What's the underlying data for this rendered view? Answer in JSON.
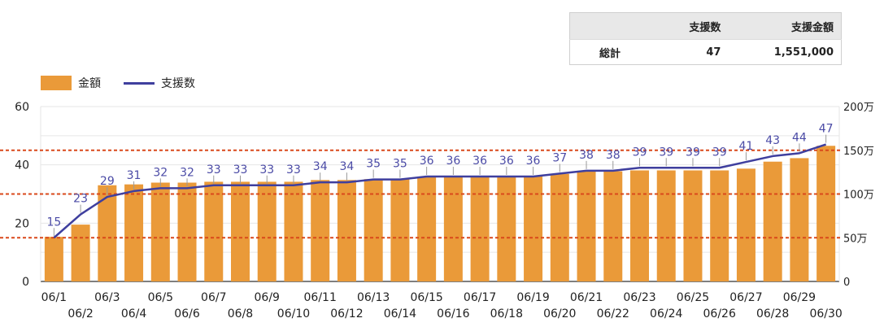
{
  "summary": {
    "headers": [
      "",
      "支援数",
      "支援金額"
    ],
    "row_label": "総計",
    "count": "47",
    "amount": "1,551,000"
  },
  "legend": {
    "amount_label": "金額",
    "count_label": "支援数"
  },
  "colors": {
    "bar": "#ea9a39",
    "line": "#3f3f9e",
    "label": "#4b4ba6",
    "reference_line": "#d9481b"
  },
  "chart_data": {
    "type": "bar",
    "categories": [
      "06/1",
      "06/2",
      "06/3",
      "06/4",
      "06/5",
      "06/6",
      "06/7",
      "06/8",
      "06/9",
      "06/10",
      "06/11",
      "06/12",
      "06/13",
      "06/14",
      "06/15",
      "06/16",
      "06/17",
      "06/18",
      "06/19",
      "06/20",
      "06/21",
      "06/22",
      "06/23",
      "06/24",
      "06/25",
      "06/26",
      "06/27",
      "06/28",
      "06/29",
      "06/30"
    ],
    "series": [
      {
        "name": "金額",
        "type": "bar",
        "axis": "right",
        "values": [
          510000,
          650000,
          1100000,
          1110000,
          1130000,
          1130000,
          1140000,
          1140000,
          1140000,
          1140000,
          1160000,
          1160000,
          1170000,
          1170000,
          1200000,
          1200000,
          1200000,
          1200000,
          1200000,
          1230000,
          1260000,
          1260000,
          1270000,
          1270000,
          1270000,
          1270000,
          1290000,
          1370000,
          1410000,
          1551000
        ]
      },
      {
        "name": "支援数",
        "type": "line",
        "axis": "left",
        "values": [
          15,
          23,
          29,
          31,
          32,
          32,
          33,
          33,
          33,
          33,
          34,
          34,
          35,
          35,
          36,
          36,
          36,
          36,
          36,
          37,
          38,
          38,
          39,
          39,
          39,
          39,
          41,
          43,
          44,
          47
        ]
      }
    ],
    "left_axis": {
      "ticks": [
        "0",
        "20",
        "40",
        "60"
      ],
      "range": [
        0,
        60
      ]
    },
    "right_axis": {
      "ticks": [
        "0",
        "50万",
        "100万",
        "150万",
        "200万"
      ],
      "range": [
        0,
        2000000
      ]
    },
    "reference_lines": [
      500000,
      1000000,
      1500000
    ],
    "grid": true
  }
}
